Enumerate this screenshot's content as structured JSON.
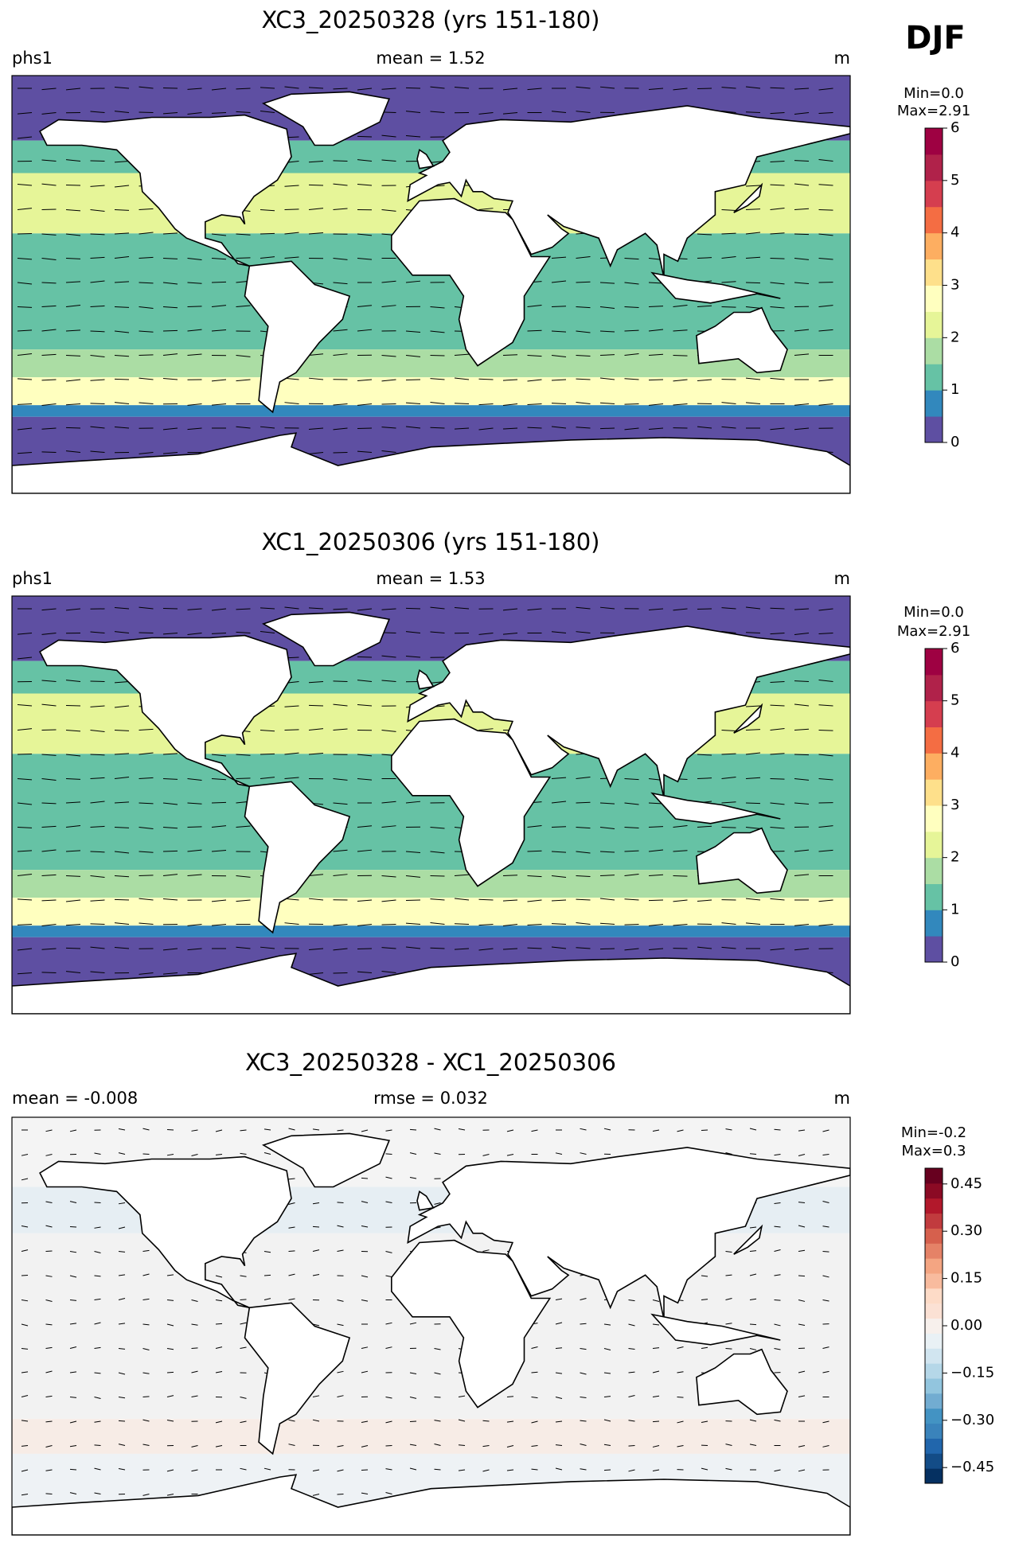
{
  "header": {
    "season": "DJF"
  },
  "panels": [
    {
      "title": "XC3_20250328 (yrs 151-180)",
      "left": "phs1",
      "center": "mean = 1.52",
      "right": "m",
      "colorbar": {
        "min_label": "Min=0.0",
        "max_label": "Max=2.91",
        "lim": [
          0,
          6
        ],
        "ticks": [
          0,
          1,
          2,
          3,
          4,
          5,
          6
        ],
        "colors": [
          "#5e4fa2",
          "#3288bd",
          "#66c2a5",
          "#abdda4",
          "#e6f598",
          "#ffffbf",
          "#fee08b",
          "#fdae61",
          "#f46d43",
          "#d53e4f",
          "#b0224a",
          "#9e0142"
        ]
      }
    },
    {
      "title": "XC1_20250306 (yrs 151-180)",
      "left": "phs1",
      "center": "mean = 1.53",
      "right": "m",
      "colorbar": {
        "min_label": "Min=0.0",
        "max_label": "Max=2.91",
        "lim": [
          0,
          6
        ],
        "ticks": [
          0,
          1,
          2,
          3,
          4,
          5,
          6
        ],
        "colors": [
          "#5e4fa2",
          "#3288bd",
          "#66c2a5",
          "#abdda4",
          "#e6f598",
          "#ffffbf",
          "#fee08b",
          "#fdae61",
          "#f46d43",
          "#d53e4f",
          "#b0224a",
          "#9e0142"
        ]
      }
    },
    {
      "title": "XC3_20250328 - XC1_20250306",
      "left": "mean = -0.008",
      "center": "rmse = 0.032",
      "right": "m",
      "colorbar": {
        "min_label": "Min=-0.2",
        "max_label": "Max=0.3",
        "lim": [
          -0.5,
          0.5
        ],
        "ticks": [
          {
            "value": -0.45,
            "label": "−0.45"
          },
          {
            "value": -0.3,
            "label": "−0.30"
          },
          {
            "value": -0.15,
            "label": "−0.15"
          },
          {
            "value": 0,
            "label": "0.00"
          },
          0.15,
          {
            "value": 0.3,
            "label": "0.30"
          },
          0.45
        ],
        "colors": [
          "#053061",
          "#134c87",
          "#2166ac",
          "#3a83bb",
          "#4393c3",
          "#72acd1",
          "#92c5de",
          "#b5d7e8",
          "#d1e5f0",
          "#e9f1f5",
          "#f7f0ec",
          "#fbe1d4",
          "#fddbc7",
          "#f8bb9e",
          "#f4a582",
          "#e58267",
          "#d6604d",
          "#c13b3e",
          "#b2182b",
          "#8b0a24",
          "#67001f"
        ]
      }
    }
  ]
}
